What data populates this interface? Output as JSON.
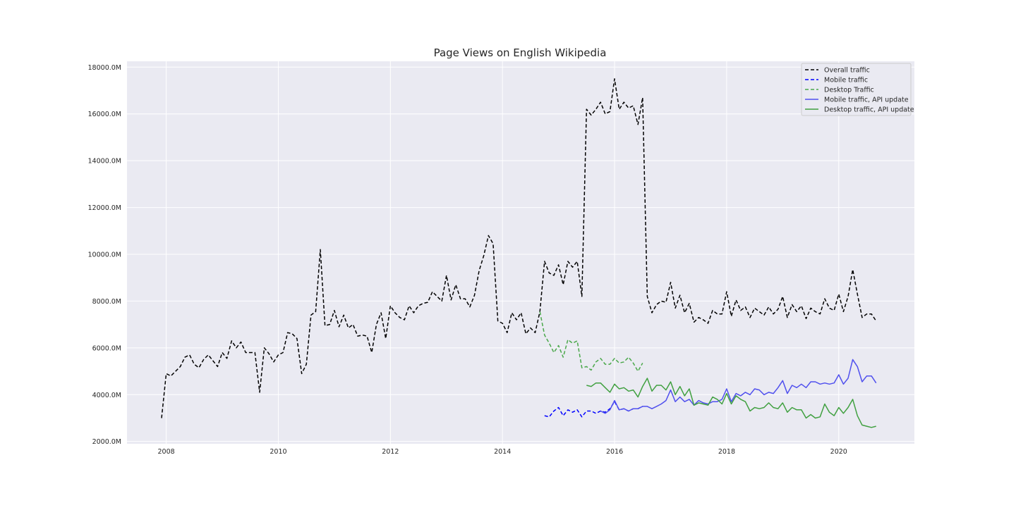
{
  "chart_data": {
    "type": "line",
    "title": "Page Views on English Wikipedia",
    "xlabel": "",
    "ylabel": "",
    "xlim": [
      2007.3,
      2021.35
    ],
    "ylim": [
      1900,
      18250
    ],
    "x_ticks": [
      2008,
      2010,
      2012,
      2014,
      2016,
      2018,
      2020
    ],
    "x_tick_labels": [
      "2008",
      "2010",
      "2012",
      "2014",
      "2016",
      "2018",
      "2020"
    ],
    "y_ticks": [
      2000,
      4000,
      6000,
      8000,
      10000,
      12000,
      14000,
      16000,
      18000
    ],
    "y_tick_labels": [
      "2000.0M",
      "4000.0M",
      "6000.0M",
      "8000.0M",
      "10000.0M",
      "12000.0M",
      "14000.0M",
      "16000.0M",
      "18000.0M"
    ],
    "grid": true,
    "legend_position": "top-right",
    "style": {
      "background": "#eaeaf2",
      "grid_color": "#ffffff"
    },
    "series": [
      {
        "name": "Overall traffic",
        "color": "#000000",
        "dash": true,
        "x": [
          2007.917,
          2008.0,
          2008.083,
          2008.167,
          2008.25,
          2008.333,
          2008.417,
          2008.5,
          2008.583,
          2008.667,
          2008.75,
          2008.833,
          2008.917,
          2009.0,
          2009.083,
          2009.167,
          2009.25,
          2009.333,
          2009.417,
          2009.5,
          2009.583,
          2009.667,
          2009.75,
          2009.833,
          2009.917,
          2010.0,
          2010.083,
          2010.167,
          2010.25,
          2010.333,
          2010.417,
          2010.5,
          2010.583,
          2010.667,
          2010.75,
          2010.833,
          2010.917,
          2011.0,
          2011.083,
          2011.167,
          2011.25,
          2011.333,
          2011.417,
          2011.5,
          2011.583,
          2011.667,
          2011.75,
          2011.833,
          2011.917,
          2012.0,
          2012.083,
          2012.167,
          2012.25,
          2012.333,
          2012.417,
          2012.5,
          2012.583,
          2012.667,
          2012.75,
          2012.833,
          2012.917,
          2013.0,
          2013.083,
          2013.167,
          2013.25,
          2013.333,
          2013.417,
          2013.5,
          2013.583,
          2013.667,
          2013.75,
          2013.833,
          2013.917,
          2014.0,
          2014.083,
          2014.167,
          2014.25,
          2014.333,
          2014.417,
          2014.5,
          2014.583,
          2014.667,
          2014.75,
          2014.833,
          2014.917,
          2015.0,
          2015.083,
          2015.167,
          2015.25,
          2015.333,
          2015.417,
          2015.5,
          2015.583,
          2015.667,
          2015.75,
          2015.833,
          2015.917,
          2016.0,
          2016.083,
          2016.167,
          2016.25,
          2016.333,
          2016.417,
          2016.5,
          2016.583,
          2016.667,
          2016.75,
          2016.833,
          2016.917,
          2017.0,
          2017.083,
          2017.167,
          2017.25,
          2017.333,
          2017.417,
          2017.5,
          2017.583,
          2017.667,
          2017.75,
          2017.833,
          2017.917,
          2018.0,
          2018.083,
          2018.167,
          2018.25,
          2018.333,
          2018.417,
          2018.5,
          2018.583,
          2018.667,
          2018.75,
          2018.833,
          2018.917,
          2019.0,
          2019.083,
          2019.167,
          2019.25,
          2019.333,
          2019.417,
          2019.5,
          2019.583,
          2019.667,
          2019.75,
          2019.833,
          2019.917,
          2020.0,
          2020.083,
          2020.167,
          2020.25,
          2020.333,
          2020.417,
          2020.5,
          2020.583,
          2020.667
        ],
        "values": [
          3000,
          4900,
          4800,
          5000,
          5200,
          5600,
          5700,
          5300,
          5150,
          5500,
          5700,
          5450,
          5200,
          5800,
          5550,
          6300,
          6000,
          6250,
          5800,
          5800,
          5800,
          4100,
          6000,
          5750,
          5400,
          5700,
          5800,
          6650,
          6600,
          6400,
          4900,
          5300,
          7400,
          7550,
          10200,
          6950,
          7000,
          7600,
          6900,
          7400,
          6850,
          7000,
          6500,
          6550,
          6500,
          5800,
          7000,
          7500,
          6400,
          7800,
          7500,
          7300,
          7200,
          7800,
          7500,
          7800,
          7900,
          7950,
          8400,
          8200,
          8000,
          9100,
          8050,
          8700,
          8100,
          8100,
          7750,
          8250,
          9300,
          9950,
          10800,
          10450,
          7150,
          7050,
          6650,
          7500,
          7200,
          7500,
          6600,
          6850,
          6650,
          7550,
          9700,
          9200,
          9100,
          9550,
          8700,
          9700,
          9450,
          9700,
          8200,
          16200,
          15950,
          16200,
          16500,
          16000,
          16100,
          17500,
          16200,
          16500,
          16250,
          16350,
          15550,
          16700,
          8200,
          7500,
          7850,
          8000,
          7950,
          8800,
          7700,
          8250,
          7500,
          7900,
          7100,
          7300,
          7200,
          7050,
          7600,
          7450,
          7450,
          8400,
          7350,
          8050,
          7600,
          7750,
          7300,
          7700,
          7550,
          7400,
          7750,
          7450,
          7650,
          8200,
          7300,
          7850,
          7550,
          7800,
          7250,
          7700,
          7550,
          7450,
          8100,
          7700,
          7600,
          8300,
          7550,
          8200,
          9350,
          8300,
          7300,
          7450,
          7450,
          7150
        ]
      },
      {
        "name": "Mobile traffic",
        "color": "#0000ff",
        "dash": true,
        "x": [
          2014.75,
          2014.833,
          2014.917,
          2015.0,
          2015.083,
          2015.167,
          2015.25,
          2015.333,
          2015.417,
          2015.5,
          2015.583,
          2015.667,
          2015.75,
          2015.833,
          2015.917,
          2016.0,
          2016.083,
          2016.167,
          2016.25,
          2016.333,
          2016.417,
          2016.5
        ],
        "values": [
          3100,
          3050,
          3300,
          3450,
          3100,
          3350,
          3250,
          3350,
          3050,
          3300,
          3300,
          3200,
          3300,
          3250,
          3400,
          3700,
          3350,
          3400,
          3300,
          3400,
          3400,
          3500
        ]
      },
      {
        "name": "Desktop Traffic",
        "color": "#4aa84a",
        "dash": true,
        "x": [
          2014.667,
          2014.75,
          2014.833,
          2014.917,
          2015.0,
          2015.083,
          2015.167,
          2015.25,
          2015.333,
          2015.417,
          2015.5,
          2015.583,
          2015.667,
          2015.75,
          2015.833,
          2015.917,
          2016.0,
          2016.083,
          2016.167,
          2016.25,
          2016.333,
          2016.417,
          2016.5
        ],
        "values": [
          7550,
          6550,
          6200,
          5800,
          6100,
          5600,
          6350,
          6200,
          6300,
          5150,
          5200,
          5050,
          5400,
          5550,
          5300,
          5300,
          5550,
          5350,
          5400,
          5600,
          5350,
          5000,
          5350
        ]
      },
      {
        "name": "Mobile traffic, API update",
        "color": "#5050ee",
        "dash": false,
        "x": [
          2015.75,
          2015.833,
          2015.917,
          2016.0,
          2016.083,
          2016.167,
          2016.25,
          2016.333,
          2016.417,
          2016.5,
          2016.583,
          2016.667,
          2016.75,
          2016.833,
          2016.917,
          2017.0,
          2017.083,
          2017.167,
          2017.25,
          2017.333,
          2017.417,
          2017.5,
          2017.583,
          2017.667,
          2017.75,
          2017.833,
          2017.917,
          2018.0,
          2018.083,
          2018.167,
          2018.25,
          2018.333,
          2018.417,
          2018.5,
          2018.583,
          2018.667,
          2018.75,
          2018.833,
          2018.917,
          2019.0,
          2019.083,
          2019.167,
          2019.25,
          2019.333,
          2019.417,
          2019.5,
          2019.583,
          2019.667,
          2019.75,
          2019.833,
          2019.917,
          2020.0,
          2020.083,
          2020.167,
          2020.25,
          2020.333,
          2020.417,
          2020.5,
          2020.583,
          2020.667
        ],
        "values": [
          3300,
          3200,
          3350,
          3750,
          3350,
          3400,
          3300,
          3400,
          3400,
          3500,
          3500,
          3400,
          3500,
          3600,
          3750,
          4200,
          3700,
          3900,
          3700,
          3800,
          3550,
          3750,
          3650,
          3600,
          3700,
          3700,
          3800,
          4250,
          3700,
          4050,
          3950,
          4100,
          4000,
          4250,
          4200,
          4000,
          4100,
          4050,
          4300,
          4600,
          4050,
          4400,
          4300,
          4450,
          4300,
          4550,
          4550,
          4450,
          4500,
          4450,
          4500,
          4850,
          4450,
          4700,
          5500,
          5200,
          4550,
          4800,
          4800,
          4500
        ]
      },
      {
        "name": "Desktop traffic, API update",
        "color": "#40a040",
        "dash": false,
        "x": [
          2015.5,
          2015.583,
          2015.667,
          2015.75,
          2015.833,
          2015.917,
          2016.0,
          2016.083,
          2016.167,
          2016.25,
          2016.333,
          2016.417,
          2016.5,
          2016.583,
          2016.667,
          2016.75,
          2016.833,
          2016.917,
          2017.0,
          2017.083,
          2017.167,
          2017.25,
          2017.333,
          2017.417,
          2017.5,
          2017.583,
          2017.667,
          2017.75,
          2017.833,
          2017.917,
          2018.0,
          2018.083,
          2018.167,
          2018.25,
          2018.333,
          2018.417,
          2018.5,
          2018.583,
          2018.667,
          2018.75,
          2018.833,
          2018.917,
          2019.0,
          2019.083,
          2019.167,
          2019.25,
          2019.333,
          2019.417,
          2019.5,
          2019.583,
          2019.667,
          2019.75,
          2019.833,
          2019.917,
          2020.0,
          2020.083,
          2020.167,
          2020.25,
          2020.333,
          2020.417,
          2020.5,
          2020.583,
          2020.667
        ],
        "values": [
          4400,
          4350,
          4500,
          4500,
          4300,
          4100,
          4450,
          4250,
          4300,
          4150,
          4200,
          3900,
          4350,
          4700,
          4150,
          4400,
          4400,
          4200,
          4550,
          4000,
          4350,
          3950,
          4250,
          3550,
          3650,
          3600,
          3550,
          3900,
          3800,
          3600,
          4050,
          3600,
          3950,
          3800,
          3700,
          3300,
          3450,
          3400,
          3450,
          3650,
          3450,
          3400,
          3650,
          3250,
          3450,
          3350,
          3350,
          3000,
          3150,
          3000,
          3050,
          3600,
          3250,
          3100,
          3450,
          3200,
          3450,
          3800,
          3100,
          2700,
          2650,
          2600,
          2650
        ]
      }
    ]
  }
}
